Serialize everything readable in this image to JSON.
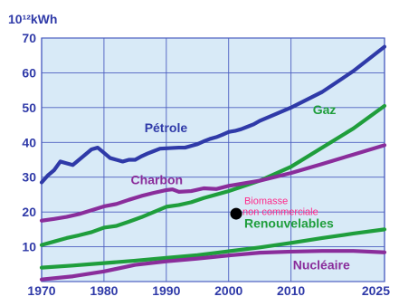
{
  "chart_data": {
    "type": "line",
    "unit_label": "10¹²kWh",
    "xlim": [
      1970,
      2025
    ],
    "ylim": [
      0,
      70
    ],
    "grid": true,
    "x_ticks": [
      1970,
      1980,
      1990,
      2000,
      2010,
      2025
    ],
    "y_ticks": [
      10,
      20,
      30,
      40,
      50,
      60,
      70
    ],
    "colors": {
      "background": "#ffffff",
      "plot_background": "#d8eaf7",
      "grid": "#4c5fc0",
      "axis": "#222222",
      "tick_text": "#2f3aa8",
      "annotation": "#ff2a8a",
      "marker": "#000000"
    },
    "series": [
      {
        "name": "Pétrole",
        "color": "#2f3aa8",
        "points": [
          [
            1970,
            28.5
          ],
          [
            1971,
            30.5
          ],
          [
            1972,
            32.0
          ],
          [
            1973,
            34.5
          ],
          [
            1974,
            34.0
          ],
          [
            1975,
            33.5
          ],
          [
            1976,
            35.0
          ],
          [
            1977,
            36.5
          ],
          [
            1978,
            38.0
          ],
          [
            1979,
            38.5
          ],
          [
            1980,
            37.0
          ],
          [
            1981,
            35.5
          ],
          [
            1982,
            35.0
          ],
          [
            1983,
            34.5
          ],
          [
            1984,
            35.0
          ],
          [
            1985,
            35.0
          ],
          [
            1986,
            36.0
          ],
          [
            1987,
            36.8
          ],
          [
            1988,
            37.5
          ],
          [
            1989,
            38.2
          ],
          [
            1990,
            38.3
          ],
          [
            1991,
            38.4
          ],
          [
            1992,
            38.5
          ],
          [
            1993,
            38.5
          ],
          [
            1994,
            39.0
          ],
          [
            1995,
            39.5
          ],
          [
            1996,
            40.3
          ],
          [
            1997,
            41.0
          ],
          [
            1998,
            41.5
          ],
          [
            1999,
            42.2
          ],
          [
            2000,
            43.0
          ],
          [
            2001,
            43.3
          ],
          [
            2002,
            43.8
          ],
          [
            2003,
            44.5
          ],
          [
            2004,
            45.2
          ],
          [
            2005,
            46.2
          ],
          [
            2010,
            50.0
          ],
          [
            2015,
            54.5
          ],
          [
            2020,
            60.5
          ],
          [
            2025,
            67.5
          ]
        ]
      },
      {
        "name": "Gaz",
        "color": "#1f9e3c",
        "points": [
          [
            1970,
            10.5
          ],
          [
            1972,
            11.5
          ],
          [
            1974,
            12.5
          ],
          [
            1976,
            13.3
          ],
          [
            1978,
            14.2
          ],
          [
            1980,
            15.5
          ],
          [
            1982,
            16.0
          ],
          [
            1984,
            17.2
          ],
          [
            1986,
            18.5
          ],
          [
            1988,
            20.0
          ],
          [
            1990,
            21.5
          ],
          [
            1992,
            22.0
          ],
          [
            1994,
            22.8
          ],
          [
            1996,
            24.0
          ],
          [
            1998,
            25.0
          ],
          [
            2000,
            26.0
          ],
          [
            2002,
            27.2
          ],
          [
            2005,
            29.0
          ],
          [
            2010,
            33.0
          ],
          [
            2015,
            38.5
          ],
          [
            2020,
            44.0
          ],
          [
            2025,
            50.5
          ]
        ]
      },
      {
        "name": "Charbon",
        "color": "#8a2d9b",
        "points": [
          [
            1970,
            17.5
          ],
          [
            1972,
            18.0
          ],
          [
            1974,
            18.6
          ],
          [
            1976,
            19.4
          ],
          [
            1978,
            20.5
          ],
          [
            1980,
            21.6
          ],
          [
            1982,
            22.3
          ],
          [
            1984,
            23.5
          ],
          [
            1986,
            24.6
          ],
          [
            1988,
            25.5
          ],
          [
            1990,
            26.3
          ],
          [
            1991,
            26.5
          ],
          [
            1992,
            25.8
          ],
          [
            1994,
            26.0
          ],
          [
            1996,
            26.8
          ],
          [
            1998,
            26.6
          ],
          [
            2000,
            27.5
          ],
          [
            2005,
            29.0
          ],
          [
            2010,
            31.2
          ],
          [
            2015,
            33.8
          ],
          [
            2020,
            36.5
          ],
          [
            2025,
            39.2
          ]
        ]
      },
      {
        "name": "Renouvelables",
        "color": "#1f9e3c",
        "points": [
          [
            1970,
            4.0
          ],
          [
            1975,
            4.6
          ],
          [
            1980,
            5.3
          ],
          [
            1985,
            6.0
          ],
          [
            1990,
            6.8
          ],
          [
            1995,
            7.6
          ],
          [
            2000,
            8.7
          ],
          [
            2005,
            9.8
          ],
          [
            2010,
            11.1
          ],
          [
            2015,
            12.5
          ],
          [
            2020,
            13.8
          ],
          [
            2025,
            15.0
          ]
        ]
      },
      {
        "name": "Nucléaire",
        "color": "#8a2d9b",
        "points": [
          [
            1970,
            0.6
          ],
          [
            1975,
            1.5
          ],
          [
            1980,
            2.9
          ],
          [
            1985,
            4.8
          ],
          [
            1990,
            5.8
          ],
          [
            1995,
            6.6
          ],
          [
            2000,
            7.5
          ],
          [
            2005,
            8.3
          ],
          [
            2010,
            8.6
          ],
          [
            2015,
            8.8
          ],
          [
            2020,
            8.8
          ],
          [
            2025,
            8.4
          ]
        ]
      }
    ],
    "labels": [
      {
        "text": "Pétrole",
        "color": "#2f3aa8",
        "x": 1986.5,
        "y": 43.0
      },
      {
        "text": "Gaz",
        "color": "#1f9e3c",
        "x": 2013.5,
        "y": 48.2
      },
      {
        "text": "Charbon",
        "color": "#8a2d9b",
        "x": 1984.3,
        "y": 28.0
      },
      {
        "text": "Renouvelables",
        "color": "#1f9e3c",
        "x": 2002.5,
        "y": 15.5
      },
      {
        "text": "Nucléaire",
        "color": "#8a2d9b",
        "x": 2010.3,
        "y": 3.5
      }
    ],
    "annotations": [
      {
        "lines": [
          "Biomasse",
          "non commerciale"
        ],
        "color": "#ff2a8a",
        "x": 2002.5,
        "y": 22.3
      }
    ],
    "markers": [
      {
        "x": 2001.2,
        "y": 19.5,
        "color": "#000000"
      }
    ]
  }
}
